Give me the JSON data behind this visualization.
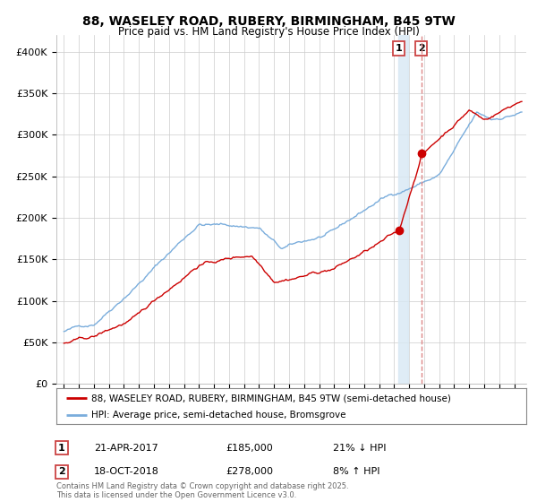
{
  "title1": "88, WASELEY ROAD, RUBERY, BIRMINGHAM, B45 9TW",
  "title2": "Price paid vs. HM Land Registry's House Price Index (HPI)",
  "legend1": "88, WASELEY ROAD, RUBERY, BIRMINGHAM, B45 9TW (semi-detached house)",
  "legend2": "HPI: Average price, semi-detached house, Bromsgrove",
  "marker1_date": "21-APR-2017",
  "marker1_price": "£185,000",
  "marker1_hpi": "21% ↓ HPI",
  "marker2_date": "18-OCT-2018",
  "marker2_price": "£278,000",
  "marker2_hpi": "8% ↑ HPI",
  "sale1_year": 2017.31,
  "sale1_price": 185000,
  "sale2_year": 2018.8,
  "sale2_price": 278000,
  "red_color": "#cc0000",
  "blue_color": "#7aaddc",
  "marker1_shade_color": "#d8e8f4",
  "marker2_vline_color": "#dd8888",
  "marker_box_color": "#cc4444",
  "background_color": "#ffffff",
  "grid_color": "#cccccc",
  "footer": "Contains HM Land Registry data © Crown copyright and database right 2025.\nThis data is licensed under the Open Government Licence v3.0.",
  "ylim": [
    0,
    420000
  ],
  "yticks": [
    0,
    50000,
    100000,
    150000,
    200000,
    250000,
    300000,
    350000,
    400000
  ],
  "ytick_labels": [
    "£0",
    "£50K",
    "£100K",
    "£150K",
    "£200K",
    "£250K",
    "£300K",
    "£350K",
    "£400K"
  ],
  "xlim_start": 1994.5,
  "xlim_end": 2025.8
}
